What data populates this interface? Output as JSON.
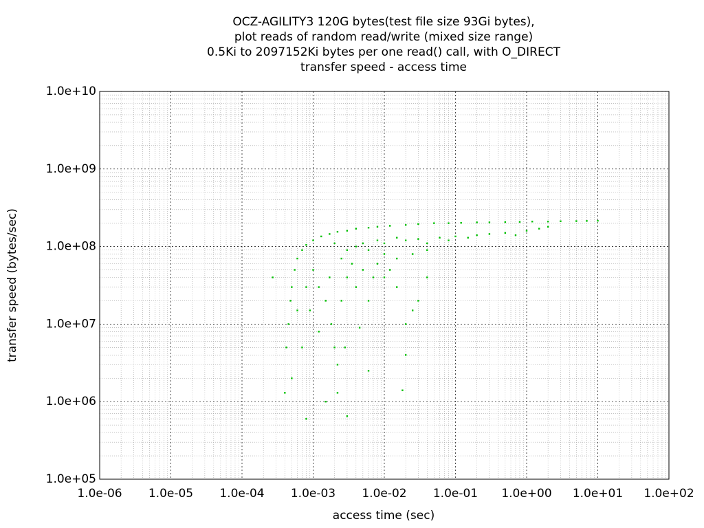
{
  "chart_data": {
    "type": "scatter",
    "title": [
      "OCZ-AGILITY3 120G bytes(test file size 93Gi bytes),",
      "plot reads of random read/write (mixed size range)",
      "0.5Ki to 2097152Ki bytes per one read() call, with O_DIRECT",
      "transfer speed - access time"
    ],
    "xlabel": "access time (sec)",
    "ylabel": "transfer speed (bytes/sec)",
    "log_x": true,
    "log_y": true,
    "grid": true,
    "minor_grid": true,
    "color": "#00c000",
    "xlim": [
      1e-06,
      100
    ],
    "ylim": [
      100000,
      10000000000
    ],
    "xticks": [
      {
        "value": 1e-06,
        "label": "1.0e-06"
      },
      {
        "value": 1e-05,
        "label": "1.0e-05"
      },
      {
        "value": 0.0001,
        "label": "1.0e-04"
      },
      {
        "value": 0.001,
        "label": "1.0e-03"
      },
      {
        "value": 0.01,
        "label": "1.0e-02"
      },
      {
        "value": 0.1,
        "label": "1.0e-01"
      },
      {
        "value": 1,
        "label": "1.0e+00"
      },
      {
        "value": 10,
        "label": "1.0e+01"
      },
      {
        "value": 100,
        "label": "1.0e+02"
      }
    ],
    "yticks": [
      {
        "value": 100000,
        "label": "1.0e+05"
      },
      {
        "value": 1000000,
        "label": "1.0e+06"
      },
      {
        "value": 10000000,
        "label": "1.0e+07"
      },
      {
        "value": 100000000,
        "label": "1.0e+08"
      },
      {
        "value": 1000000000,
        "label": "1.0e+09"
      },
      {
        "value": 10000000000,
        "label": "1.0e+10"
      }
    ],
    "x": [
      0.00027,
      0.0004,
      0.00042,
      0.00045,
      0.00048,
      0.0005,
      0.00055,
      0.0006,
      0.0007,
      0.0008,
      0.001,
      0.0013,
      0.0017,
      0.0022,
      0.003,
      0.004,
      0.006,
      0.008,
      0.012,
      0.02,
      0.03,
      0.05,
      0.08,
      0.12,
      0.2,
      0.3,
      0.5,
      0.8,
      1.2,
      2,
      3,
      5,
      7,
      10,
      0.005,
      0.008,
      0.01,
      0.015,
      0.02,
      0.03,
      0.04,
      0.06,
      0.08,
      0.1,
      0.15,
      0.2,
      0.3,
      0.5,
      0.7,
      1,
      1.5,
      2,
      0.04,
      0.025,
      0.015,
      0.01,
      0.006,
      0.004,
      0.003,
      0.002,
      0.0006,
      0.0008,
      0.001,
      0.0012,
      0.0015,
      0.0018,
      0.002,
      0.0022,
      0.0025,
      0.003,
      0.0035,
      0.004,
      0.005,
      0.006,
      0.007,
      0.008,
      0.01,
      0.012,
      0.015,
      0.02,
      0.02,
      0.018,
      0.025,
      0.03,
      0.04,
      0.006,
      0.003,
      0.0022,
      0.0015,
      0.0008,
      0.0005,
      0.0012,
      0.0028,
      0.0045,
      0.0017,
      0.0025,
      0.0009,
      0.0007
    ],
    "values": [
      40000000,
      1300000,
      5000000,
      10000000,
      20000000,
      30000000,
      50000000,
      70000000,
      90000000,
      105000000,
      120000000,
      135000000,
      145000000,
      155000000,
      160000000,
      170000000,
      175000000,
      180000000,
      185000000,
      190000000,
      195000000,
      200000000,
      200000000,
      202000000,
      205000000,
      205000000,
      207000000,
      208000000,
      210000000,
      210000000,
      212000000,
      213000000,
      214000000,
      215000000,
      110000000,
      120000000,
      110000000,
      130000000,
      120000000,
      125000000,
      110000000,
      130000000,
      120000000,
      135000000,
      130000000,
      140000000,
      145000000,
      150000000,
      140000000,
      160000000,
      170000000,
      180000000,
      90000000,
      80000000,
      70000000,
      80000000,
      90000000,
      100000000,
      90000000,
      110000000,
      15000000,
      30000000,
      50000000,
      30000000,
      20000000,
      10000000,
      5000000,
      3000000,
      20000000,
      40000000,
      60000000,
      30000000,
      50000000,
      20000000,
      40000000,
      60000000,
      40000000,
      50000000,
      30000000,
      10000000,
      4000000,
      1400000,
      15000000,
      20000000,
      40000000,
      2500000,
      650000,
      1300000,
      1000000,
      600000,
      2000000,
      8000000,
      5000000,
      9000000,
      40000000,
      70000000,
      15000000,
      5000000
    ]
  }
}
